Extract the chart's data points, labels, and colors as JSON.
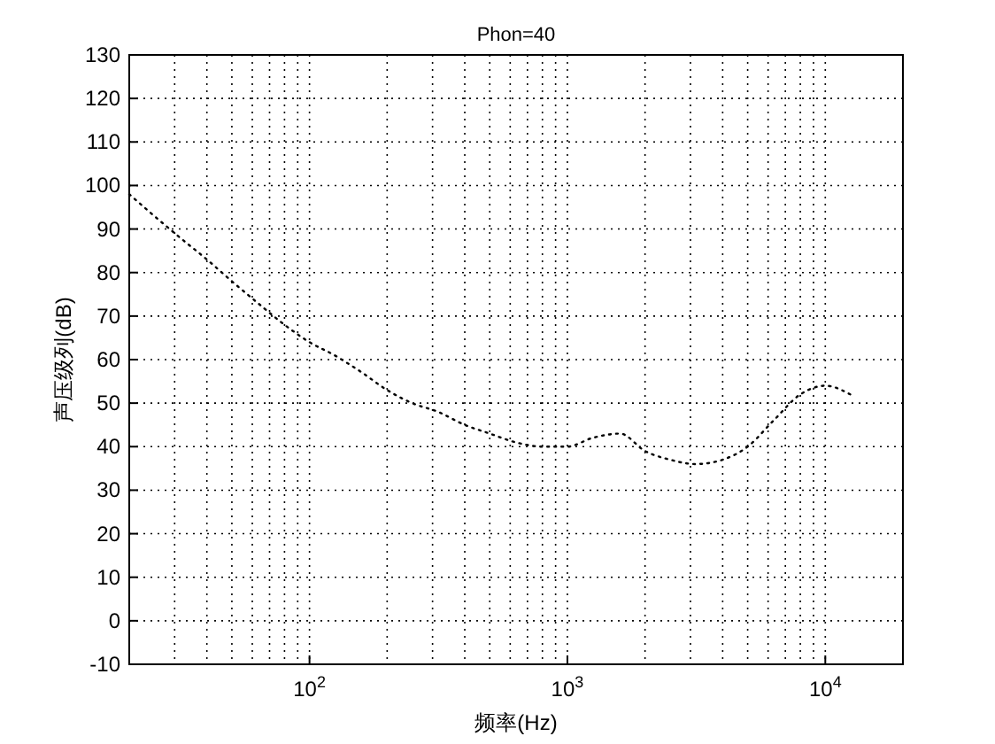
{
  "chart_data": {
    "type": "line",
    "title": "Phon=40",
    "xlabel": "频率(Hz)",
    "ylabel": "声压级列(dB)",
    "log": "x",
    "grid": true,
    "line_style": "dotted",
    "marker": "none",
    "xlim": [
      20,
      20000
    ],
    "xticks": [
      {
        "value": 100,
        "label": "10$^{2}$"
      },
      {
        "value": 1000,
        "label": "10$^{3}$"
      },
      {
        "value": 10000,
        "label": "10$^{4}$"
      }
    ],
    "ylim": [
      -10,
      130
    ],
    "yticks": [
      -10,
      0,
      10,
      20,
      30,
      40,
      50,
      60,
      70,
      80,
      90,
      100,
      110,
      120,
      130
    ],
    "x": [
      20,
      25,
      31.5,
      40,
      50,
      63,
      80,
      100,
      125,
      160,
      200,
      250,
      315,
      400,
      500,
      630,
      800,
      1000,
      1250,
      1600,
      2000,
      2500,
      3150,
      4000,
      5000,
      6300,
      8000,
      10000,
      12500
    ],
    "series": [
      {
        "color": "#000000",
        "values": [
          98,
          93,
          88,
          83,
          78,
          73,
          68,
          64,
          61,
          57,
          53,
          50,
          48,
          45,
          43,
          41,
          40,
          40,
          42,
          43,
          39,
          37,
          36,
          37,
          40,
          46,
          52,
          54,
          52
        ]
      }
    ]
  }
}
